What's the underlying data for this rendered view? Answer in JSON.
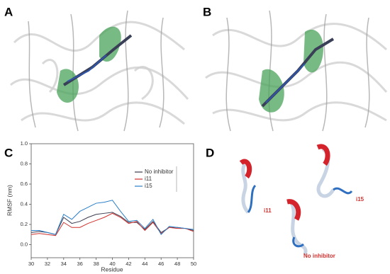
{
  "panel_labels": [
    "A",
    "B",
    "C",
    "D"
  ],
  "chart_data": {
    "type": "line",
    "xlabel": "Residue",
    "ylabel": "RMSF (nm)",
    "x": [
      30,
      31,
      32,
      33,
      34,
      35,
      36,
      37,
      38,
      39,
      40,
      41,
      42,
      43,
      44,
      45,
      46,
      47,
      48,
      49,
      50
    ],
    "series": [
      {
        "name": "No inhibitor",
        "color": "#3b3b4f",
        "values": [
          0.12,
          0.13,
          0.12,
          0.1,
          0.27,
          0.21,
          0.23,
          0.27,
          0.3,
          0.31,
          0.32,
          0.28,
          0.22,
          0.22,
          0.15,
          0.23,
          0.12,
          0.17,
          0.17,
          0.16,
          0.14
        ]
      },
      {
        "name": "i11",
        "color": "#d0312d",
        "values": [
          0.1,
          0.11,
          0.1,
          0.09,
          0.22,
          0.17,
          0.17,
          0.21,
          0.24,
          0.27,
          0.31,
          0.27,
          0.21,
          0.23,
          0.14,
          0.22,
          0.11,
          0.17,
          0.16,
          0.16,
          0.13
        ]
      },
      {
        "name": "i15",
        "color": "#2a7fc8",
        "values": [
          0.14,
          0.14,
          0.12,
          0.1,
          0.3,
          0.25,
          0.33,
          0.37,
          0.41,
          0.42,
          0.44,
          0.33,
          0.23,
          0.24,
          0.16,
          0.25,
          0.1,
          0.18,
          0.17,
          0.16,
          0.15
        ]
      }
    ],
    "xlim": [
      30,
      50
    ],
    "xticks": [
      30,
      32,
      34,
      36,
      38,
      40,
      42,
      44,
      46,
      48,
      50
    ],
    "ylim": [
      -0.13,
      1.0
    ],
    "yticks": [
      {
        "value": 0,
        "label": "0.0"
      },
      0.2,
      0.4,
      0.6,
      0.8,
      {
        "value": 1,
        "label": "1.0"
      }
    ],
    "legend": "upper right"
  },
  "structure_labels": [
    "i11",
    "i15",
    "No inhibitor"
  ]
}
